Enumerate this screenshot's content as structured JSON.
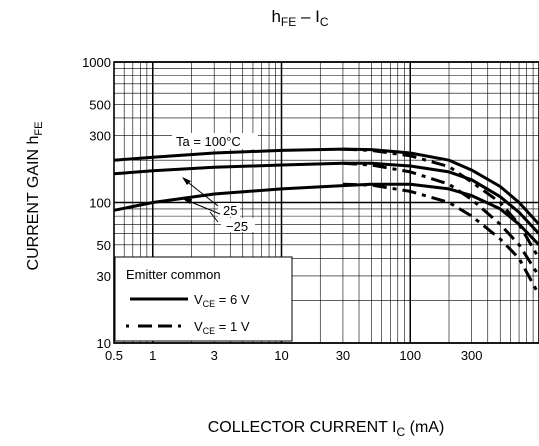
{
  "chart_data": {
    "type": "line",
    "title": {
      "main": "h",
      "main_sub": "FE",
      "sep": " – I",
      "tail_sub": "C"
    },
    "ylabel": {
      "main": "CURRENT GAIN   h",
      "sub": "FE"
    },
    "xlabel": {
      "main": "COLLECTOR CURRENT I",
      "sub": "C",
      "unit": "(mA)"
    },
    "x_scale": "log",
    "y_scale": "log",
    "xlim": [
      0.5,
      1000
    ],
    "ylim": [
      10,
      1000
    ],
    "x_ticks": [
      0.5,
      1,
      3,
      10,
      30,
      100,
      300
    ],
    "x_tick_labels": [
      "0.5",
      "1",
      "3",
      "10",
      "30",
      "100",
      "300"
    ],
    "y_ticks": [
      10,
      30,
      50,
      100,
      300,
      500,
      1000
    ],
    "y_tick_labels": [
      "10",
      "30",
      "50",
      "100",
      "300",
      "500",
      "1000"
    ],
    "grid": true,
    "series": [
      {
        "name": "Ta = 100°C, VCE = 6 V",
        "style": "solid",
        "x": [
          0.5,
          1,
          3,
          10,
          30,
          50,
          100,
          200,
          300,
          500,
          700,
          1000
        ],
        "y": [
          200,
          210,
          225,
          235,
          240,
          238,
          225,
          200,
          170,
          130,
          100,
          70
        ]
      },
      {
        "name": "Ta = 100°C, VCE = 1 V",
        "style": "dash",
        "x": [
          30,
          50,
          100,
          200,
          300,
          500,
          700,
          1000
        ],
        "y": [
          240,
          235,
          215,
          180,
          140,
          100,
          70,
          40
        ]
      },
      {
        "name": "Ta = 25°C, VCE = 6 V",
        "style": "solid",
        "x": [
          0.5,
          1,
          3,
          10,
          30,
          50,
          100,
          200,
          300,
          500,
          700,
          1000
        ],
        "y": [
          160,
          168,
          178,
          185,
          190,
          190,
          182,
          165,
          145,
          110,
          85,
          60
        ]
      },
      {
        "name": "Ta = 25°C, VCE = 1 V",
        "style": "dash",
        "x": [
          30,
          50,
          100,
          200,
          300,
          500,
          700,
          1000
        ],
        "y": [
          190,
          185,
          165,
          135,
          105,
          70,
          50,
          30
        ]
      },
      {
        "name": "Ta = -25°C, VCE = 6 V",
        "style": "solid",
        "x": [
          0.5,
          1,
          3,
          10,
          30,
          50,
          100,
          200,
          300,
          500,
          700,
          1000
        ],
        "y": [
          88,
          100,
          115,
          125,
          132,
          135,
          135,
          125,
          112,
          90,
          70,
          50
        ]
      },
      {
        "name": "Ta = -25°C, VCE = 1 V",
        "style": "dash",
        "x": [
          30,
          50,
          100,
          200,
          300,
          500,
          700,
          1000
        ],
        "y": [
          135,
          133,
          120,
          100,
          80,
          55,
          40,
          22
        ]
      }
    ],
    "curve_labels": {
      "t100": "Ta = 100°C",
      "t25": "25",
      "tm25": "−25"
    },
    "legend": {
      "title": "Emitter common",
      "entries": [
        {
          "style": "solid",
          "pre": "V",
          "sub": "CE",
          "post": " = 6 V"
        },
        {
          "style": "dash",
          "pre": "V",
          "sub": "CE",
          "post": " = 1 V"
        }
      ],
      "placement": "bottom-left"
    }
  }
}
